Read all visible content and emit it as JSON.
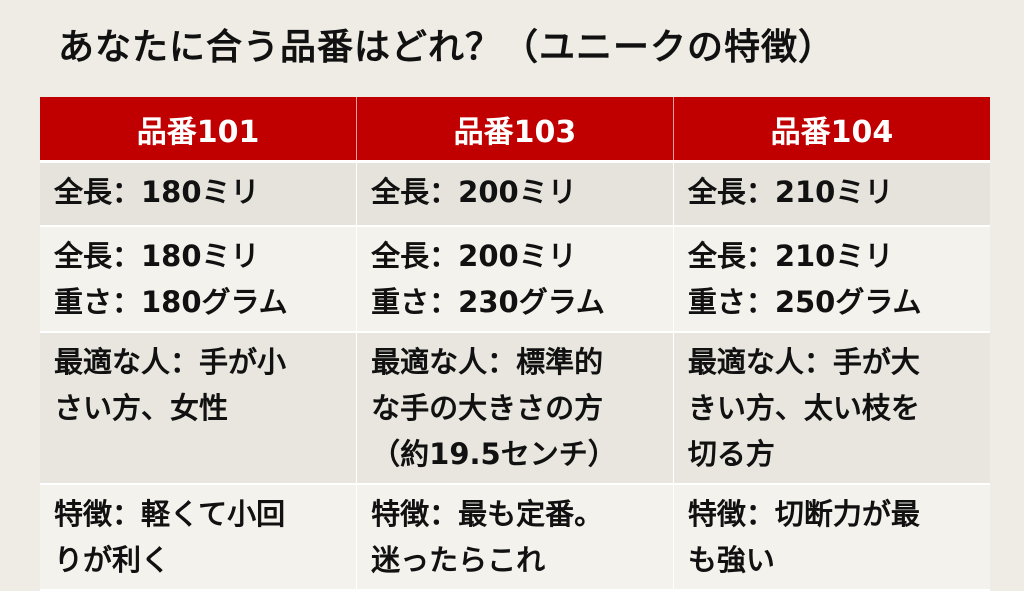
{
  "title": "あなたに合う品番はどれ？（ユニークの特徴）",
  "colors": {
    "header_bg": "#c00000",
    "header_text": "#ffffff",
    "background": "#efece5"
  },
  "columns": [
    "品番101",
    "品番103",
    "品番104"
  ],
  "rows": [
    [
      [
        "全長：180ミリ"
      ],
      [
        "全長：200ミリ"
      ],
      [
        "全長：210ミリ"
      ]
    ],
    [
      [
        "全長：180ミリ",
        "重さ：180グラム"
      ],
      [
        "全長：200ミリ",
        "重さ：230グラム"
      ],
      [
        "全長：210ミリ",
        "重さ：250グラム"
      ]
    ],
    [
      [
        "最適な人：手が小",
        "さい方、女性"
      ],
      [
        "最適な人：標準的",
        "な手の大きさの方",
        "（約19.5センチ）"
      ],
      [
        "最適な人：手が大",
        "きい方、太い枝を",
        "切る方"
      ]
    ],
    [
      [
        "特徴：軽くて小回",
        "りが利く"
      ],
      [
        "特徴：最も定番。",
        "迷ったらこれ"
      ],
      [
        "特徴：切断力が最",
        "も強い"
      ]
    ]
  ]
}
